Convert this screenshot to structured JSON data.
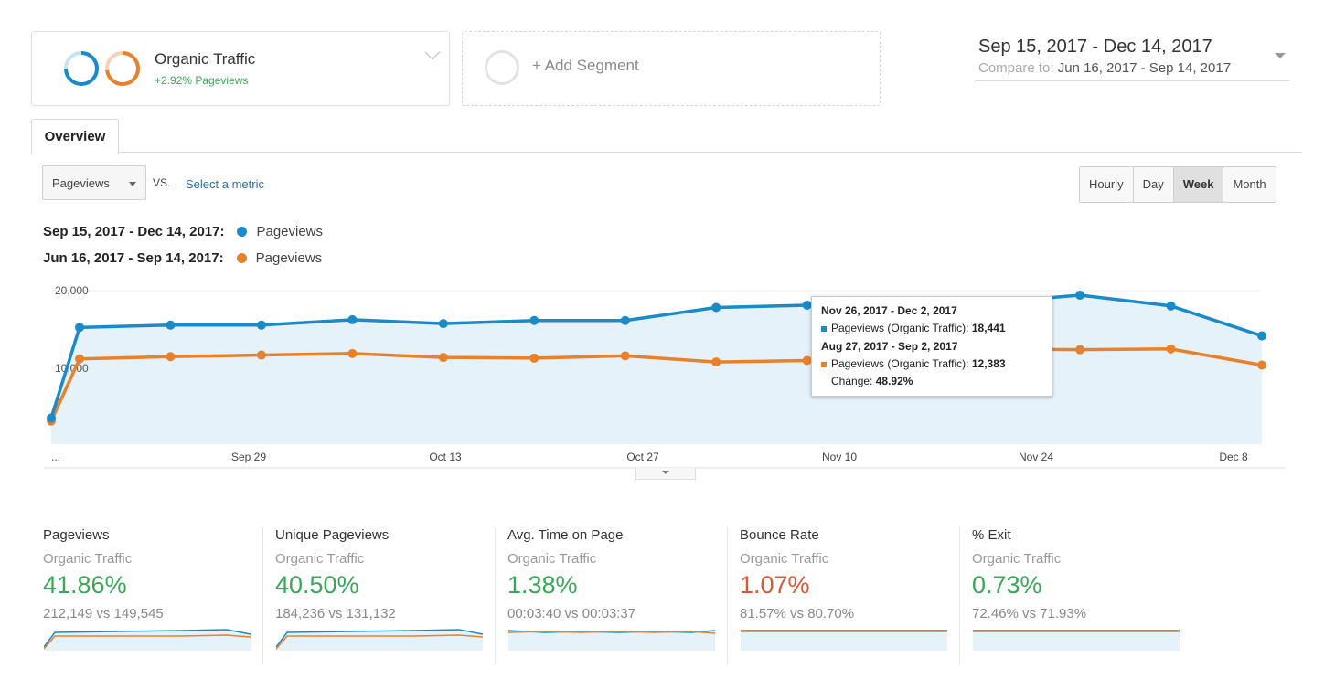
{
  "segments": {
    "active": {
      "title": "Organic Traffic",
      "subtitle": "+2.92% Pageviews"
    },
    "add_label": "+ Add Segment"
  },
  "date_range": {
    "main": "Sep 15, 2017 - Dec 14, 2017",
    "compare_label": "Compare to:",
    "compare_range": "Jun 16, 2017 - Sep 14, 2017"
  },
  "tabs": [
    {
      "label": "Overview"
    }
  ],
  "controls": {
    "metric": "Pageviews",
    "vs": "VS.",
    "select_metric": "Select a metric",
    "granularity": [
      "Hourly",
      "Day",
      "Week",
      "Month"
    ],
    "granularity_active": "Week"
  },
  "legend": [
    {
      "range": "Sep 15, 2017 - Dec 14, 2017:",
      "name": "Pageviews",
      "color": "#1a8bc8"
    },
    {
      "range": "Jun 16, 2017 - Sep 14, 2017:",
      "name": "Pageviews",
      "color": "#e8812c"
    }
  ],
  "chart_data": {
    "type": "line",
    "y_ticks": [
      "20,000",
      "10,000"
    ],
    "ylim": [
      0,
      20000
    ],
    "x_ticks": [
      "...",
      "Sep 29",
      "Oct 13",
      "Oct 27",
      "Nov 10",
      "Nov 24",
      "Dec 8"
    ],
    "series": [
      {
        "color": "#1a8bc8",
        "values": [
          3400,
          15200,
          15500,
          15500,
          16200,
          15700,
          16100,
          16100,
          17800,
          18100,
          18300,
          18441,
          19400,
          18000,
          14100
        ]
      },
      {
        "color": "#e8812c",
        "values": [
          3000,
          11100,
          11400,
          11600,
          11800,
          11300,
          11200,
          11500,
          10700,
          10900,
          11400,
          12383,
          12300,
          12400,
          10300
        ]
      }
    ],
    "grid": true
  },
  "tooltip": {
    "range1": "Nov 26, 2017 - Dec 2, 2017",
    "line1": "Pageviews (Organic Traffic):",
    "value1": "18,441",
    "range2": "Aug 27, 2017 - Sep 2, 2017",
    "line2": "Pageviews (Organic Traffic):",
    "value2": "12,383",
    "change_label": "Change:",
    "change_value": "48.92%"
  },
  "kpis": [
    {
      "name": "Pageviews",
      "segment": "Organic Traffic",
      "value": "41.86%",
      "compare": "212,149 vs 149,545",
      "color": "#3aa757"
    },
    {
      "name": "Unique Pageviews",
      "segment": "Organic Traffic",
      "value": "40.50%",
      "compare": "184,236 vs 131,132",
      "color": "#3aa757"
    },
    {
      "name": "Avg. Time on Page",
      "segment": "Organic Traffic",
      "value": "1.38%",
      "compare": "00:03:40 vs 00:03:37",
      "color": "#3aa757"
    },
    {
      "name": "Bounce Rate",
      "segment": "Organic Traffic",
      "value": "1.07%",
      "compare": "81.57% vs 80.70%",
      "color": "#d65a35"
    },
    {
      "name": "% Exit",
      "segment": "Organic Traffic",
      "value": "0.73%",
      "compare": "72.46% vs 71.93%",
      "color": "#3aa757"
    }
  ]
}
